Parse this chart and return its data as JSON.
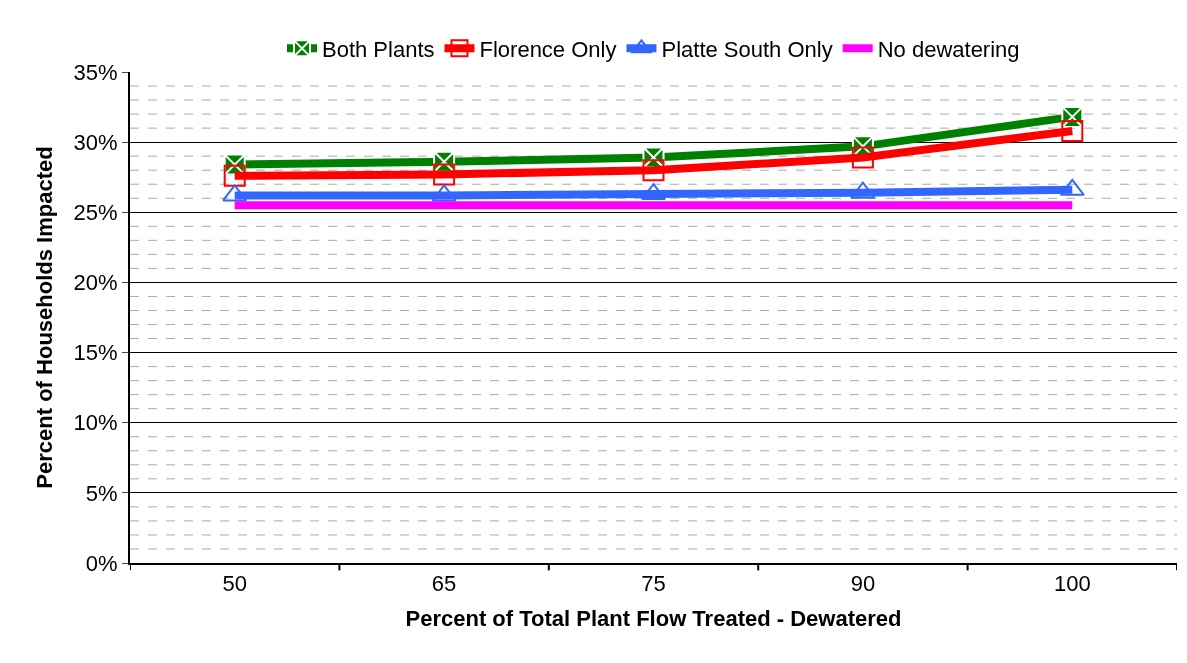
{
  "chart_data": {
    "type": "line",
    "xlabel": "Percent of Total Plant Flow Treated - Dewatered",
    "ylabel": "Percent of Households Impacted",
    "categories": [
      "50",
      "65",
      "75",
      "90",
      "100"
    ],
    "series": [
      {
        "name": "Both Plants",
        "color": "#008000",
        "marker": "cross",
        "values": [
          28.4,
          28.6,
          28.9,
          29.7,
          31.8
        ]
      },
      {
        "name": "Florence Only",
        "color": "#ff0000",
        "marker": "square",
        "values": [
          27.6,
          27.7,
          28.0,
          28.9,
          30.8
        ]
      },
      {
        "name": "Platte South Only",
        "color": "#3366ff",
        "marker": "triangle",
        "values": [
          26.2,
          26.2,
          26.3,
          26.4,
          26.6
        ]
      },
      {
        "name": "No dewatering",
        "color": "#ff00ff",
        "marker": "none",
        "values": [
          25.5,
          25.5,
          25.5,
          25.5,
          25.5
        ]
      }
    ],
    "ylim": [
      0,
      35
    ],
    "yticks": [
      {
        "value": 0,
        "label": "0%"
      },
      {
        "value": 1,
        "label": null
      },
      {
        "value": 2,
        "label": null
      },
      {
        "value": 3,
        "label": null
      },
      {
        "value": 4,
        "label": null
      },
      {
        "value": 5,
        "label": "5%"
      },
      {
        "value": 6,
        "label": null
      },
      {
        "value": 7,
        "label": null
      },
      {
        "value": 8,
        "label": null
      },
      {
        "value": 9,
        "label": null
      },
      {
        "value": 10,
        "label": "10%"
      },
      {
        "value": 11,
        "label": null
      },
      {
        "value": 12,
        "label": null
      },
      {
        "value": 13,
        "label": null
      },
      {
        "value": 14,
        "label": null
      },
      {
        "value": 15,
        "label": "15%"
      },
      {
        "value": 16,
        "label": null
      },
      {
        "value": 17,
        "label": null
      },
      {
        "value": 18,
        "label": null
      },
      {
        "value": 19,
        "label": null
      },
      {
        "value": 20,
        "label": "20%"
      },
      {
        "value": 21,
        "label": null
      },
      {
        "value": 22,
        "label": null
      },
      {
        "value": 23,
        "label": null
      },
      {
        "value": 24,
        "label": null
      },
      {
        "value": 25,
        "label": "25%"
      },
      {
        "value": 26,
        "label": null
      },
      {
        "value": 27,
        "label": null
      },
      {
        "value": 28,
        "label": null
      },
      {
        "value": 29,
        "label": null
      },
      {
        "value": 30,
        "label": "30%"
      },
      {
        "value": 31,
        "label": null
      },
      {
        "value": 32,
        "label": null
      },
      {
        "value": 33,
        "label": null
      },
      {
        "value": 34,
        "label": null
      },
      {
        "value": 35,
        "label": "35%"
      }
    ],
    "grid": "y",
    "legend": "top",
    "line_style": "solid"
  }
}
